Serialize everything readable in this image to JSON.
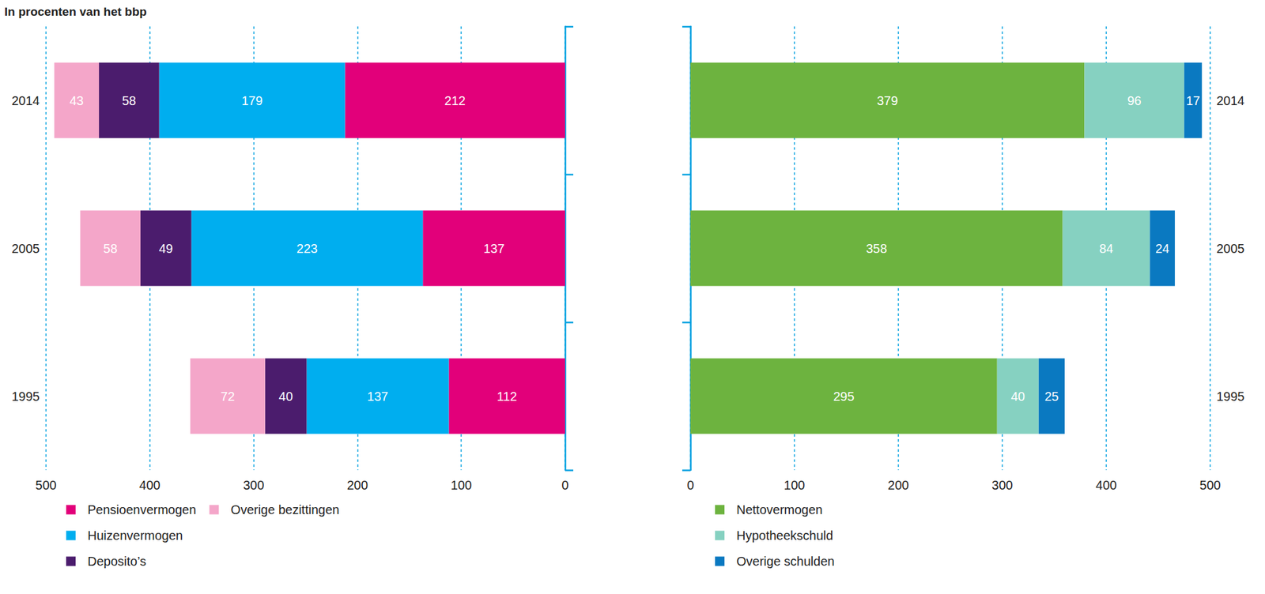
{
  "chart_data": [
    {
      "type": "bar",
      "title": "In procenten van het bbp",
      "orientation": "horizontal",
      "stacked": true,
      "data_labels": true,
      "grid": true,
      "legend": "bottom-left",
      "categories": [
        "1995",
        "2005",
        "2014"
      ],
      "xlim": [
        0,
        500
      ],
      "xticks": [
        0,
        100,
        200,
        300,
        400,
        500
      ],
      "series": [
        {
          "name": "Pensioenvermogen",
          "color": "#e2007a",
          "values": [
            112,
            137,
            212
          ]
        },
        {
          "name": "Huizenvermogen",
          "color": "#00aeef",
          "values": [
            137,
            223,
            179
          ]
        },
        {
          "name": "Deposito’s",
          "color": "#4b1c6d",
          "values": [
            40,
            49,
            58
          ]
        },
        {
          "name": "Overige bezittingen",
          "color": "#f4a6c9",
          "values": [
            72,
            58,
            43
          ]
        }
      ]
    },
    {
      "type": "bar",
      "orientation": "horizontal",
      "stacked": true,
      "data_labels": true,
      "grid": true,
      "legend": "bottom-left",
      "categories": [
        "1995",
        "2005",
        "2014"
      ],
      "xlim": [
        0,
        500
      ],
      "xticks": [
        0,
        100,
        200,
        300,
        400,
        500
      ],
      "series": [
        {
          "name": "Nettovermogen",
          "color": "#6db33f",
          "values": [
            295,
            358,
            379
          ]
        },
        {
          "name": "Hypotheekschuld",
          "color": "#86d1c1",
          "values": [
            40,
            84,
            96
          ]
        },
        {
          "name": "Overige schulden",
          "color": "#0a79c1",
          "values": [
            25,
            24,
            17
          ]
        }
      ]
    }
  ]
}
